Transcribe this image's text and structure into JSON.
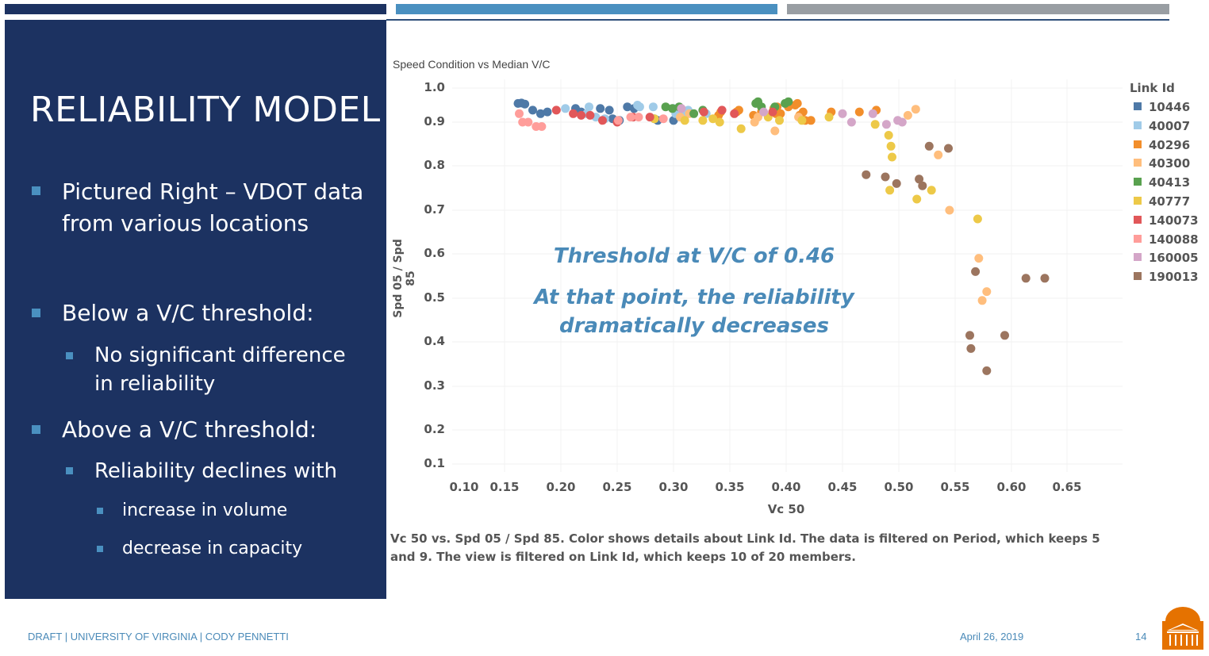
{
  "slide": {
    "title": "RELIABILITY MODEL",
    "bullets": [
      {
        "level": 1,
        "text": "Pictured Right – VDOT data from various locations"
      },
      {
        "level": 1,
        "text": "Below a V/C threshold:"
      },
      {
        "level": 2,
        "text": "No significant difference in reliability"
      },
      {
        "level": 1,
        "text": "Above a V/C threshold:"
      },
      {
        "level": 2,
        "text": "Reliability declines with"
      },
      {
        "level": 3,
        "text": "increase in volume"
      },
      {
        "level": 3,
        "text": "decrease in capacity"
      }
    ],
    "annotation_1": "Threshold at V/C of 0.46",
    "annotation_2a": "At that point, the reliability",
    "annotation_2b": "dramatically decreases",
    "caption_line1": "Vc 50 vs. Spd 05 / Spd 85.  Color shows details about Link Id. The data is filtered on Period, which keeps 5",
    "caption_line2": "and 9. The view is filtered on Link Id, which keeps 10 of 20 members.",
    "footer_left": "DRAFT | UNIVERSITY OF VIRGINIA | CODY PENNETTI",
    "footer_date": "April 26, 2019",
    "page_number": "14",
    "colors": {
      "navy": "#1c3261",
      "accent_blue": "#4a90c0",
      "gray": "#999ea3",
      "logo_orange": "#e57200"
    }
  },
  "chart_data": {
    "type": "scatter",
    "title": "Speed Condition vs Median V/C",
    "xlabel": "Vc 50",
    "ylabel": "Spd 05 / Spd 85",
    "xticks": [
      "0.10",
      "0.15",
      "0.20",
      "0.25",
      "0.30",
      "0.35",
      "0.40",
      "0.45",
      "0.50",
      "0.55",
      "0.60",
      "0.65"
    ],
    "yticks": [
      "1.0",
      "0.9",
      "0.8",
      "0.7",
      "0.6",
      "0.5",
      "0.4",
      "0.3",
      "0.2",
      "0.1"
    ],
    "xlim": [
      0.1,
      0.65
    ],
    "ylim": [
      0.1,
      1.0
    ],
    "grid": true,
    "legend_title": "Link Id",
    "legend_position": "right",
    "series": [
      {
        "name": "10446",
        "color": "#4e79a7",
        "points": [
          [
            0.162,
            0.955
          ],
          [
            0.165,
            0.956
          ],
          [
            0.168,
            0.953
          ],
          [
            0.175,
            0.935
          ],
          [
            0.182,
            0.925
          ],
          [
            0.188,
            0.93
          ],
          [
            0.213,
            0.94
          ],
          [
            0.218,
            0.93
          ],
          [
            0.235,
            0.94
          ],
          [
            0.243,
            0.935
          ],
          [
            0.246,
            0.91
          ],
          [
            0.252,
            0.905
          ],
          [
            0.259,
            0.945
          ],
          [
            0.265,
            0.94
          ],
          [
            0.283,
            0.91
          ],
          [
            0.286,
            0.905
          ],
          [
            0.3,
            0.905
          ]
        ]
      },
      {
        "name": "40007",
        "color": "#a0cbe8",
        "points": [
          [
            0.204,
            0.94
          ],
          [
            0.223,
            0.925
          ],
          [
            0.225,
            0.945
          ],
          [
            0.231,
            0.915
          ],
          [
            0.239,
            0.91
          ],
          [
            0.268,
            0.95
          ],
          [
            0.27,
            0.945
          ],
          [
            0.282,
            0.945
          ],
          [
            0.3,
            0.94
          ],
          [
            0.302,
            0.925
          ],
          [
            0.31,
            0.93
          ],
          [
            0.313,
            0.935
          ],
          [
            0.329,
            0.925
          ]
        ]
      },
      {
        "name": "40296",
        "color": "#f28e2b",
        "points": [
          [
            0.34,
            0.92
          ],
          [
            0.342,
            0.93
          ],
          [
            0.356,
            0.93
          ],
          [
            0.358,
            0.935
          ],
          [
            0.371,
            0.92
          ],
          [
            0.378,
            0.93
          ],
          [
            0.389,
            0.94
          ],
          [
            0.391,
            0.925
          ],
          [
            0.392,
            0.945
          ],
          [
            0.395,
            0.925
          ],
          [
            0.402,
            0.945
          ],
          [
            0.408,
            0.95
          ],
          [
            0.41,
            0.955
          ],
          [
            0.412,
            0.92
          ],
          [
            0.415,
            0.93
          ],
          [
            0.417,
            0.905
          ],
          [
            0.422,
            0.905
          ],
          [
            0.44,
            0.93
          ],
          [
            0.465,
            0.93
          ],
          [
            0.48,
            0.935
          ]
        ]
      },
      {
        "name": "40300",
        "color": "#ffbe7d",
        "points": [
          [
            0.306,
            0.915
          ],
          [
            0.314,
            0.925
          ],
          [
            0.372,
            0.9
          ],
          [
            0.375,
            0.915
          ],
          [
            0.39,
            0.88
          ],
          [
            0.411,
            0.915
          ],
          [
            0.508,
            0.92
          ],
          [
            0.515,
            0.938
          ],
          [
            0.535,
            0.825
          ],
          [
            0.545,
            0.7
          ],
          [
            0.571,
            0.59
          ],
          [
            0.578,
            0.515
          ],
          [
            0.574,
            0.495
          ]
        ]
      },
      {
        "name": "40413",
        "color": "#59a14f",
        "points": [
          [
            0.293,
            0.945
          ],
          [
            0.299,
            0.94
          ],
          [
            0.305,
            0.945
          ],
          [
            0.318,
            0.925
          ],
          [
            0.326,
            0.935
          ],
          [
            0.373,
            0.955
          ],
          [
            0.375,
            0.96
          ],
          [
            0.378,
            0.945
          ],
          [
            0.39,
            0.945
          ],
          [
            0.399,
            0.955
          ],
          [
            0.402,
            0.96
          ]
        ]
      },
      {
        "name": "40777",
        "color": "#edc948",
        "points": [
          [
            0.283,
            0.91
          ],
          [
            0.31,
            0.905
          ],
          [
            0.326,
            0.905
          ],
          [
            0.335,
            0.91
          ],
          [
            0.341,
            0.9
          ],
          [
            0.36,
            0.885
          ],
          [
            0.384,
            0.915
          ],
          [
            0.394,
            0.905
          ],
          [
            0.414,
            0.905
          ],
          [
            0.438,
            0.915
          ],
          [
            0.479,
            0.895
          ],
          [
            0.491,
            0.87
          ],
          [
            0.493,
            0.845
          ],
          [
            0.494,
            0.82
          ],
          [
            0.492,
            0.745
          ],
          [
            0.516,
            0.725
          ],
          [
            0.529,
            0.745
          ],
          [
            0.57,
            0.68
          ]
        ]
      },
      {
        "name": "140073",
        "color": "#e15759",
        "points": [
          [
            0.196,
            0.935
          ],
          [
            0.211,
            0.925
          ],
          [
            0.218,
            0.92
          ],
          [
            0.226,
            0.92
          ],
          [
            0.237,
            0.905
          ],
          [
            0.25,
            0.9
          ],
          [
            0.264,
            0.915
          ],
          [
            0.279,
            0.915
          ],
          [
            0.327,
            0.93
          ],
          [
            0.343,
            0.935
          ],
          [
            0.354,
            0.925
          ],
          [
            0.388,
            0.93
          ]
        ]
      },
      {
        "name": "140088",
        "color": "#ff9d9a",
        "points": [
          [
            0.163,
            0.925
          ],
          [
            0.166,
            0.9
          ],
          [
            0.171,
            0.9
          ],
          [
            0.178,
            0.89
          ],
          [
            0.183,
            0.89
          ],
          [
            0.251,
            0.905
          ],
          [
            0.262,
            0.915
          ],
          [
            0.269,
            0.915
          ],
          [
            0.291,
            0.91
          ]
        ]
      },
      {
        "name": "160005",
        "color": "#d4a6c8",
        "points": [
          [
            0.307,
            0.94
          ],
          [
            0.38,
            0.93
          ],
          [
            0.45,
            0.925
          ],
          [
            0.458,
            0.9
          ],
          [
            0.477,
            0.925
          ],
          [
            0.489,
            0.895
          ],
          [
            0.499,
            0.905
          ],
          [
            0.503,
            0.9
          ]
        ]
      },
      {
        "name": "190013",
        "color": "#9c755f",
        "points": [
          [
            0.471,
            0.78
          ],
          [
            0.488,
            0.775
          ],
          [
            0.498,
            0.76
          ],
          [
            0.518,
            0.77
          ],
          [
            0.521,
            0.755
          ],
          [
            0.527,
            0.845
          ],
          [
            0.544,
            0.84
          ],
          [
            0.568,
            0.56
          ],
          [
            0.563,
            0.415
          ],
          [
            0.564,
            0.385
          ],
          [
            0.578,
            0.335
          ],
          [
            0.594,
            0.415
          ],
          [
            0.613,
            0.545
          ],
          [
            0.63,
            0.545
          ]
        ]
      }
    ]
  }
}
